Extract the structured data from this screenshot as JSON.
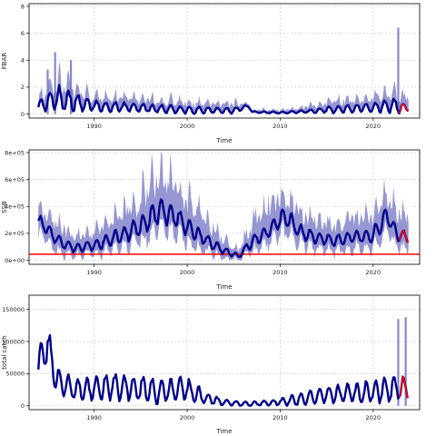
{
  "chart_data": [
    {
      "type": "line",
      "xlabel": "Time",
      "ylabel": "FBAR",
      "xlim": [
        1983,
        2025
      ],
      "ylim": [
        -0.3,
        8.2
      ],
      "xticks": [
        1990,
        2000,
        2010,
        2020
      ],
      "yticks": [
        0,
        2,
        4,
        6,
        8
      ],
      "ytick_labels": [
        "0",
        "2",
        "4",
        "6",
        "8"
      ],
      "grid": true,
      "series_color": "#00008b",
      "band_color": "#6a6abf",
      "highlight_color": "#ff0000",
      "highlight_from": 2022.7,
      "x_start": 1984,
      "x_end": 2023.8,
      "period": 1.0,
      "anchor_x": [
        1984,
        1986,
        1990,
        1995,
        2000,
        2005,
        2006.6,
        2007,
        2010,
        2013,
        2016,
        2020,
        2022.5,
        2023.8
      ],
      "anchor_y": [
        0.6,
        1.2,
        0.6,
        0.45,
        0.3,
        0.25,
        0.6,
        0.15,
        0.1,
        0.2,
        0.35,
        0.5,
        0.6,
        0.4
      ],
      "amp": [
        0.45,
        0.9,
        0.35,
        0.3,
        0.25,
        0.2,
        0.1,
        0.05,
        0.06,
        0.1,
        0.25,
        0.3,
        0.5,
        0.2
      ],
      "band_up": [
        0.6,
        1.6,
        0.8,
        0.8,
        0.7,
        0.6,
        0.3,
        0.2,
        0.25,
        0.4,
        0.8,
        0.9,
        1.2,
        0.8
      ],
      "band_low": [
        0.05,
        0.1,
        0.05,
        0.05,
        0.05,
        0.05,
        0.1,
        0.02,
        0.02,
        0.02,
        0.05,
        0.05,
        0.1,
        0.05
      ],
      "spikes": [
        {
          "x": 2022.7,
          "y": 6.4
        },
        {
          "x": 1985.8,
          "y": 4.6
        },
        {
          "x": 1985.0,
          "y": 3.3
        },
        {
          "x": 1987.5,
          "y": 4.0
        }
      ]
    },
    {
      "type": "line",
      "xlabel": "Time",
      "ylabel": "SSB",
      "xlim": [
        1983,
        2025
      ],
      "ylim": [
        -30000,
        820000
      ],
      "xticks": [
        1990,
        2000,
        2010,
        2020
      ],
      "yticks": [
        0,
        200000,
        400000,
        600000,
        800000
      ],
      "ytick_labels": [
        "0e+00",
        "2e+05",
        "4e+05",
        "6e+05",
        "8e+05"
      ],
      "grid": true,
      "series_color": "#00008b",
      "band_color": "#6a6abf",
      "highlight_color": "#ff0000",
      "highlight_from": 2022.7,
      "hline": 45000,
      "x_start": 1984,
      "x_end": 2023.8,
      "period": 1.0,
      "anchor_x": [
        1984,
        1986,
        1988,
        1990,
        1992,
        1995,
        1997,
        1998.5,
        2000,
        2002,
        2004,
        2005.5,
        2007,
        2009,
        2010.5,
        2012,
        2014,
        2016,
        2018,
        2020,
        2021.5,
        2022.5,
        2023.8
      ],
      "anchor_y": [
        300000,
        150000,
        90000,
        110000,
        160000,
        250000,
        370000,
        340000,
        250000,
        150000,
        70000,
        30000,
        140000,
        230000,
        330000,
        220000,
        160000,
        150000,
        170000,
        190000,
        340000,
        200000,
        170000
      ],
      "amp": [
        40000,
        40000,
        30000,
        35000,
        50000,
        70000,
        90000,
        80000,
        60000,
        40000,
        25000,
        15000,
        40000,
        50000,
        70000,
        50000,
        40000,
        40000,
        40000,
        50000,
        70000,
        50000,
        40000
      ],
      "band_up": [
        150000,
        140000,
        110000,
        120000,
        180000,
        250000,
        330000,
        300000,
        240000,
        180000,
        90000,
        60000,
        180000,
        250000,
        200000,
        180000,
        160000,
        140000,
        150000,
        180000,
        200000,
        200000,
        180000
      ],
      "band_low": [
        100000,
        80000,
        60000,
        60000,
        80000,
        110000,
        130000,
        120000,
        110000,
        80000,
        50000,
        30000,
        70000,
        90000,
        120000,
        90000,
        80000,
        80000,
        80000,
        90000,
        120000,
        90000,
        80000
      ],
      "spikes": []
    },
    {
      "type": "line",
      "xlabel": "Time",
      "ylabel": "total catch",
      "xlim": [
        1983,
        2025
      ],
      "ylim": [
        -6000,
        172000
      ],
      "xticks": [
        1990,
        2000,
        2010,
        2020
      ],
      "yticks": [
        0,
        50000,
        100000,
        150000
      ],
      "ytick_labels": [
        "0",
        "50000",
        "100000",
        "150000"
      ],
      "grid": true,
      "series_color": "#00008b",
      "band_color": "#6a6abf",
      "highlight_color": "#ff0000",
      "highlight_from": 2022.7,
      "x_start": 1984,
      "x_end": 2023.8,
      "period": 1.0,
      "anchor_x": [
        1984,
        1985,
        1986,
        1988,
        1992,
        1996,
        2000,
        2002,
        2004,
        2007,
        2010,
        2013,
        2016,
        2019,
        2021,
        2022.7,
        2023.8
      ],
      "anchor_y": [
        60000,
        95000,
        40000,
        25000,
        30000,
        25000,
        25000,
        12000,
        5000,
        3000,
        6000,
        12000,
        18000,
        20000,
        25000,
        30000,
        25000
      ],
      "amp": [
        25000,
        25000,
        20000,
        15000,
        18000,
        20000,
        18000,
        8000,
        4000,
        3000,
        5000,
        10000,
        12000,
        15000,
        18000,
        20000,
        10000
      ],
      "band_up": [
        0,
        0,
        0,
        0,
        0,
        0,
        0,
        0,
        0,
        0,
        0,
        0,
        0,
        0,
        0,
        0,
        0
      ],
      "band_low": [
        0,
        0,
        0,
        0,
        0,
        0,
        0,
        0,
        0,
        0,
        0,
        0,
        0,
        0,
        0,
        0,
        0
      ],
      "spikes": [
        {
          "x": 2022.7,
          "y": 135000
        },
        {
          "x": 2023.5,
          "y": 138000
        }
      ]
    }
  ]
}
